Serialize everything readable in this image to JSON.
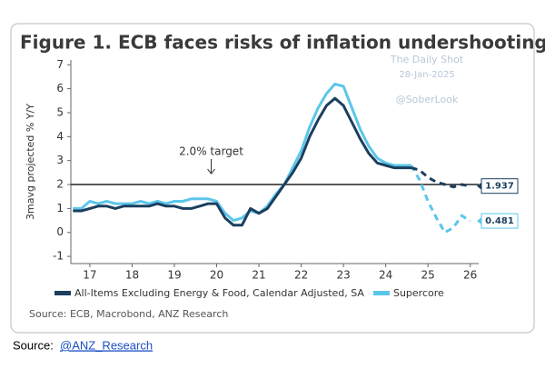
{
  "chart_data": {
    "type": "line",
    "title": "Figure 1. ECB faces risks of inflation undershooting",
    "watermark": [
      "The Daily Shot",
      "28-Jan-2025",
      "@SoberLook"
    ],
    "ylabel": "3mavg projected % Y/Y",
    "source": "Source: ECB, Macrobond, ANZ Research",
    "target": {
      "value": 2,
      "label": "2.0% target"
    },
    "x": [
      16.6,
      16.8,
      17,
      17.2,
      17.4,
      17.6,
      17.8,
      18,
      18.2,
      18.4,
      18.6,
      18.8,
      19,
      19.2,
      19.4,
      19.6,
      19.8,
      20,
      20.2,
      20.4,
      20.6,
      20.8,
      21,
      21.2,
      21.4,
      21.6,
      21.8,
      22,
      22.2,
      22.4,
      22.6,
      22.8,
      23,
      23.2,
      23.4,
      23.6,
      23.8,
      24,
      24.2,
      24.4,
      24.6,
      24.8,
      25,
      25.2,
      25.4,
      25.6,
      25.8,
      26
    ],
    "xlim": [
      16.55,
      26.2
    ],
    "xticks": [
      17,
      18,
      19,
      20,
      21,
      22,
      23,
      24,
      25,
      26
    ],
    "ylim": [
      -1.3,
      7.2
    ],
    "yticks": [
      -1,
      0,
      1,
      2,
      3,
      4,
      5,
      6,
      7
    ],
    "series": [
      {
        "name": "All-Items Excluding Energy & Food, Calendar Adjusted, SA",
        "color": "#1c3f5e",
        "values": [
          0.9,
          0.9,
          1.0,
          1.1,
          1.1,
          1.0,
          1.1,
          1.1,
          1.1,
          1.1,
          1.2,
          1.1,
          1.1,
          1.0,
          1.0,
          1.1,
          1.2,
          1.2,
          0.6,
          0.3,
          0.3,
          1.0,
          0.8,
          1.0,
          1.5,
          2.0,
          2.5,
          3.1,
          4.0,
          4.7,
          5.3,
          5.6,
          5.3,
          4.6,
          3.9,
          3.3,
          2.9,
          2.8,
          2.7,
          2.7,
          2.7,
          null,
          null,
          null,
          null,
          null,
          null,
          null
        ],
        "projected": [
          null,
          null,
          null,
          null,
          null,
          null,
          null,
          null,
          null,
          null,
          null,
          null,
          null,
          null,
          null,
          null,
          null,
          null,
          null,
          null,
          null,
          null,
          null,
          null,
          null,
          null,
          null,
          null,
          null,
          null,
          null,
          null,
          null,
          null,
          null,
          null,
          null,
          null,
          null,
          null,
          2.7,
          2.6,
          2.3,
          2.1,
          2.0,
          1.9,
          2.0,
          1.937
        ]
      },
      {
        "name": "Supercore",
        "color": "#5cc6ea",
        "values": [
          1.0,
          1.0,
          1.3,
          1.2,
          1.3,
          1.2,
          1.2,
          1.2,
          1.3,
          1.2,
          1.3,
          1.2,
          1.3,
          1.3,
          1.4,
          1.4,
          1.4,
          1.3,
          0.8,
          0.5,
          0.6,
          0.9,
          0.8,
          1.1,
          1.6,
          2.0,
          2.7,
          3.4,
          4.4,
          5.2,
          5.8,
          6.2,
          6.1,
          5.2,
          4.3,
          3.6,
          3.1,
          2.9,
          2.8,
          2.8,
          2.8,
          null,
          null,
          null,
          null,
          null,
          null,
          null
        ],
        "projected": [
          null,
          null,
          null,
          null,
          null,
          null,
          null,
          null,
          null,
          null,
          null,
          null,
          null,
          null,
          null,
          null,
          null,
          null,
          null,
          null,
          null,
          null,
          null,
          null,
          null,
          null,
          null,
          null,
          null,
          null,
          null,
          null,
          null,
          null,
          null,
          null,
          null,
          null,
          null,
          null,
          2.8,
          2.2,
          1.3,
          0.6,
          0.0,
          0.2,
          0.7,
          0.481
        ]
      }
    ]
  },
  "footer": {
    "prefix": "Source:",
    "link": "@ANZ_Research"
  }
}
